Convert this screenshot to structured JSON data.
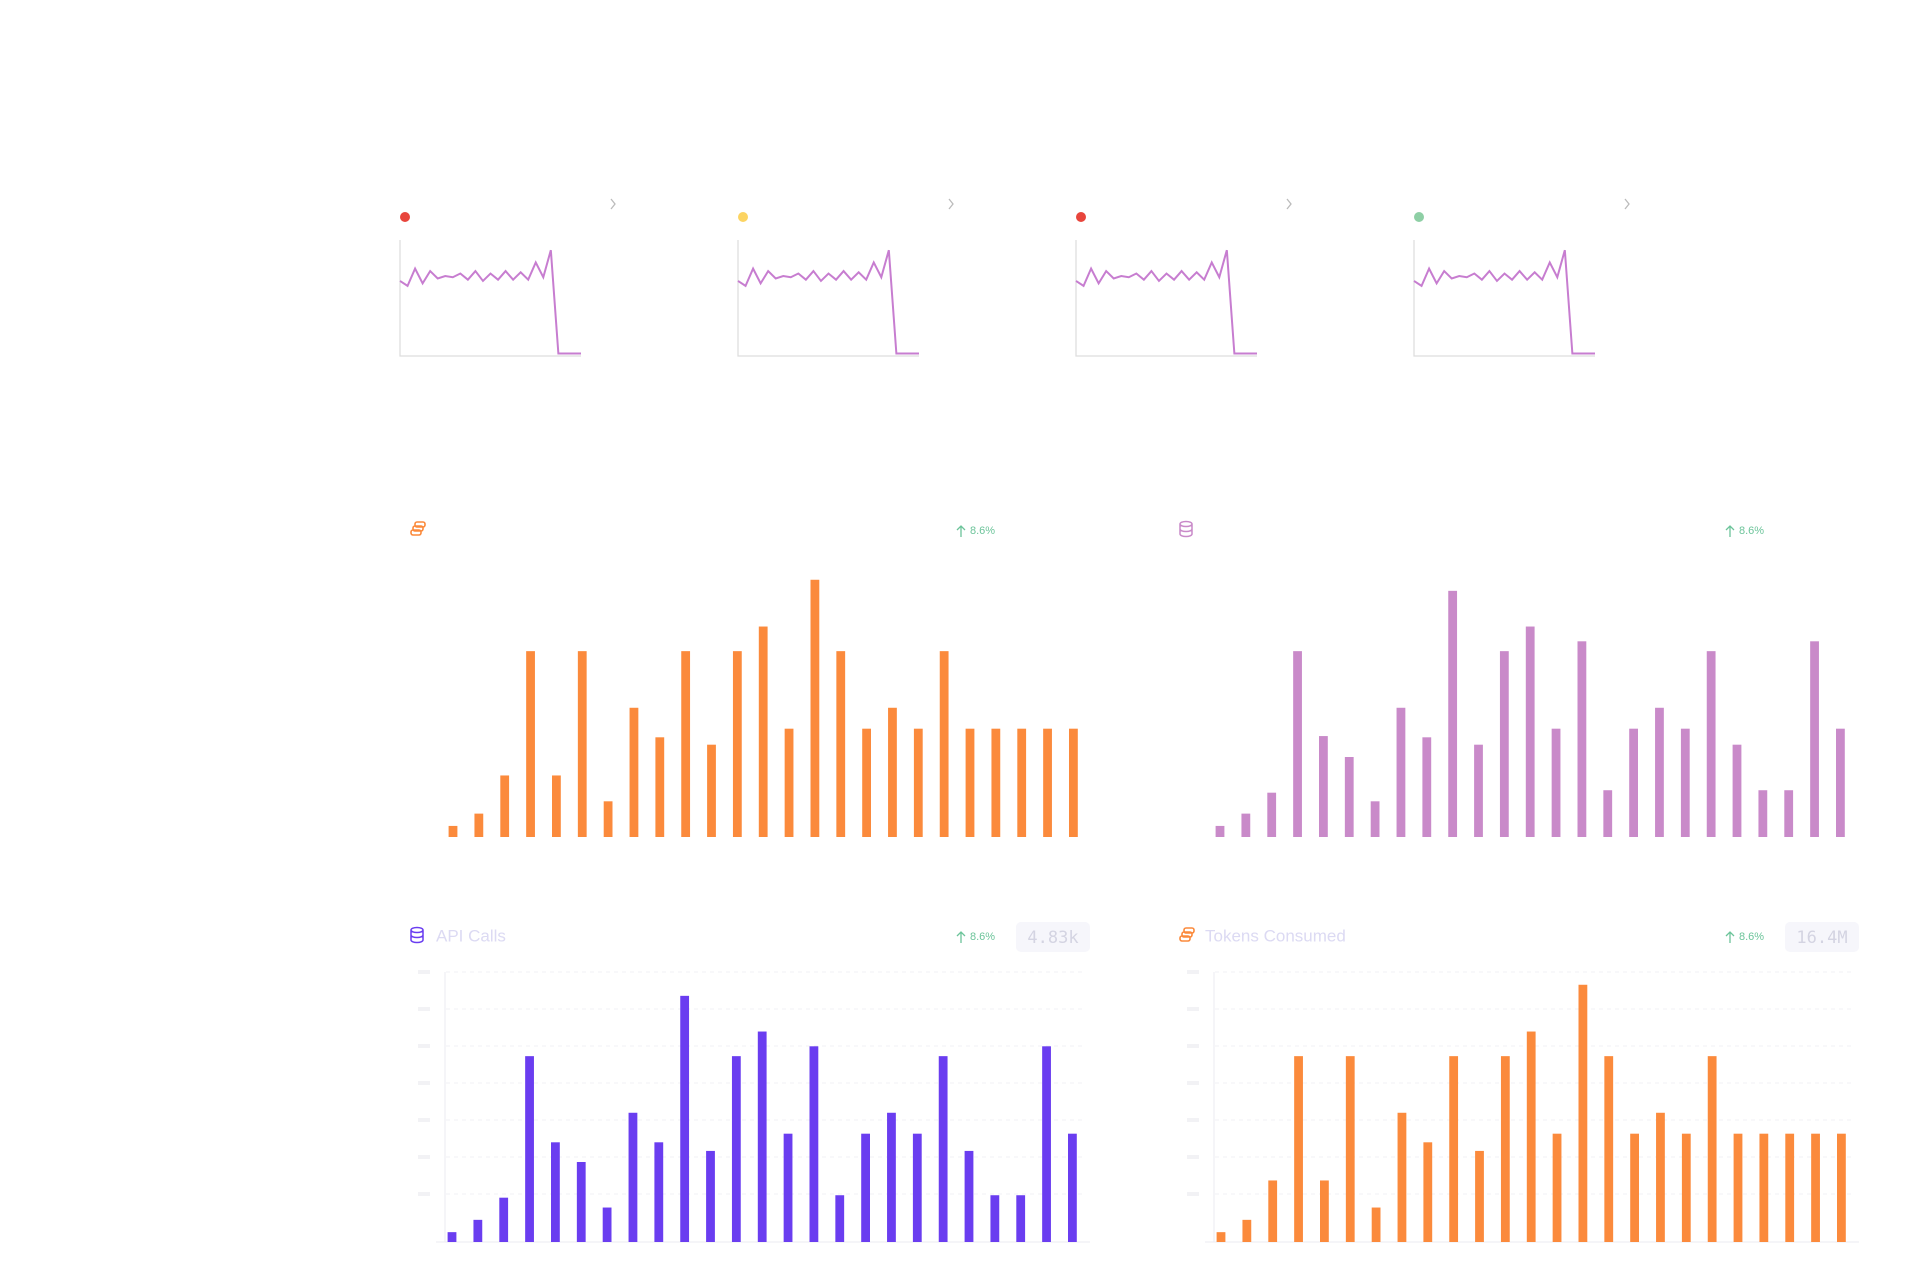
{
  "cards": [
    {
      "status_color": "#e8453c",
      "sparkline": [
        61,
        57,
        71,
        59,
        69,
        63,
        65,
        64,
        67,
        62,
        69,
        61,
        67,
        62,
        69,
        62,
        68,
        62,
        76,
        64,
        86,
        2,
        2,
        2,
        2
      ],
      "line_color": "#c77dd0"
    },
    {
      "status_color": "#fcd462",
      "sparkline": [
        61,
        57,
        71,
        59,
        69,
        63,
        65,
        64,
        67,
        62,
        69,
        61,
        67,
        62,
        69,
        62,
        68,
        62,
        76,
        64,
        86,
        2,
        2,
        2,
        2
      ],
      "line_color": "#c77dd0"
    },
    {
      "status_color": "#e8453c",
      "sparkline": [
        61,
        57,
        71,
        59,
        69,
        63,
        65,
        64,
        67,
        62,
        69,
        61,
        67,
        62,
        69,
        62,
        68,
        62,
        76,
        64,
        86,
        2,
        2,
        2,
        2
      ],
      "line_color": "#c77dd0"
    },
    {
      "status_color": "#8ecfa5",
      "sparkline": [
        61,
        57,
        71,
        59,
        69,
        63,
        65,
        64,
        67,
        62,
        69,
        61,
        67,
        62,
        69,
        62,
        68,
        62,
        76,
        64,
        86,
        2,
        2,
        2,
        2
      ],
      "line_color": "#c77dd0"
    }
  ],
  "panels": [
    {
      "change": "8.6%",
      "color": "#fb8a3c",
      "values": [
        9,
        19,
        50,
        151,
        50,
        151,
        29,
        105,
        81,
        151,
        75,
        151,
        171,
        88,
        209,
        151,
        88,
        105,
        88,
        151,
        88,
        88,
        88,
        88,
        88
      ]
    },
    {
      "change": "8.6%",
      "color": "#c98ac9",
      "values": [
        9,
        19,
        36,
        151,
        82,
        65,
        29,
        105,
        81,
        200,
        75,
        151,
        171,
        88,
        159,
        38,
        88,
        105,
        88,
        151,
        75,
        38,
        38,
        159,
        88
      ]
    },
    {
      "title": "API Calls",
      "change": "8.6%",
      "total": "4.83k",
      "color": "#6a3df0",
      "values": [
        8,
        18,
        36,
        151,
        81,
        65,
        28,
        105,
        81,
        200,
        74,
        151,
        171,
        88,
        159,
        38,
        88,
        105,
        88,
        151,
        74,
        38,
        38,
        159,
        88
      ]
    },
    {
      "title": "Tokens Consumed",
      "change": "8.6%",
      "total": "16.4M",
      "color": "#fb8a3c",
      "values": [
        8,
        18,
        50,
        151,
        50,
        151,
        28,
        105,
        81,
        151,
        74,
        151,
        171,
        88,
        209,
        151,
        88,
        105,
        88,
        151,
        88,
        88,
        88,
        88,
        88
      ]
    }
  ]
}
